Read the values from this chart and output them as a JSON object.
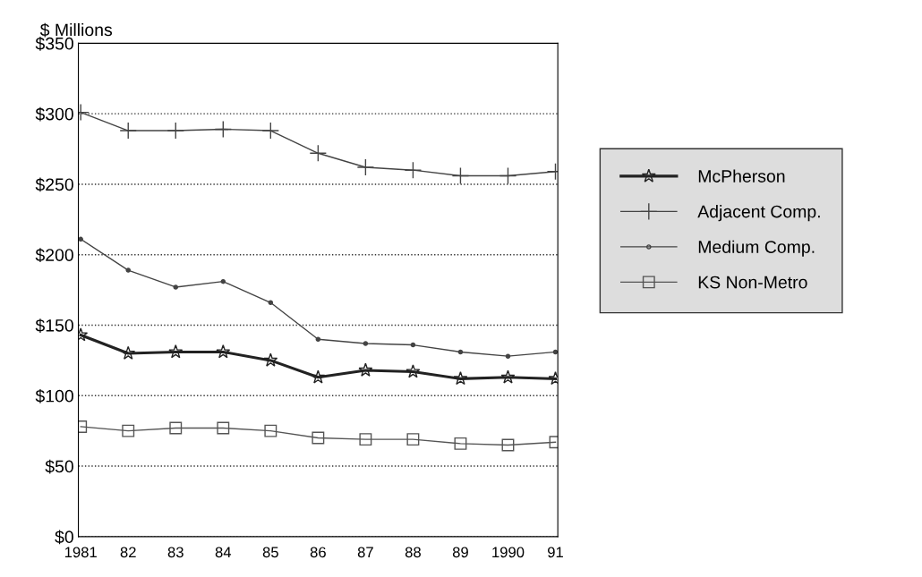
{
  "chart_data": {
    "type": "line",
    "ylabel": "$ Millions",
    "categories": [
      "1981",
      "82",
      "83",
      "84",
      "85",
      "86",
      "87",
      "88",
      "89",
      "1990",
      "91"
    ],
    "series": [
      {
        "name": "McPherson",
        "color": "#222222",
        "marker": "star",
        "values": [
          143,
          130,
          131,
          131,
          125,
          113,
          118,
          117,
          112,
          113,
          112
        ]
      },
      {
        "name": "Adjacent Comp.",
        "color": "#444444",
        "marker": "cross",
        "values": [
          301,
          288,
          288,
          289,
          288,
          272,
          262,
          260,
          256,
          256,
          259
        ]
      },
      {
        "name": "Medium Comp.",
        "color": "#444444",
        "marker": "circle",
        "values": [
          211,
          189,
          177,
          181,
          166,
          140,
          137,
          136,
          131,
          128,
          131
        ]
      },
      {
        "name": "KS Non-Metro",
        "color": "#555555",
        "marker": "square",
        "values": [
          78,
          75,
          77,
          77,
          75,
          70,
          69,
          69,
          66,
          65,
          67
        ]
      }
    ],
    "ylim": [
      0,
      350
    ],
    "yticks": [
      {
        "value": 0,
        "label": "$0"
      },
      {
        "value": 50,
        "label": "$50"
      },
      {
        "value": 100,
        "label": "$100"
      },
      {
        "value": 150,
        "label": "$150"
      },
      {
        "value": 200,
        "label": "$200"
      },
      {
        "value": 250,
        "label": "$250"
      },
      {
        "value": 300,
        "label": "$300"
      },
      {
        "value": 350,
        "label": "$350"
      }
    ],
    "grid": "y",
    "legend": "right",
    "line_style": "solid"
  }
}
